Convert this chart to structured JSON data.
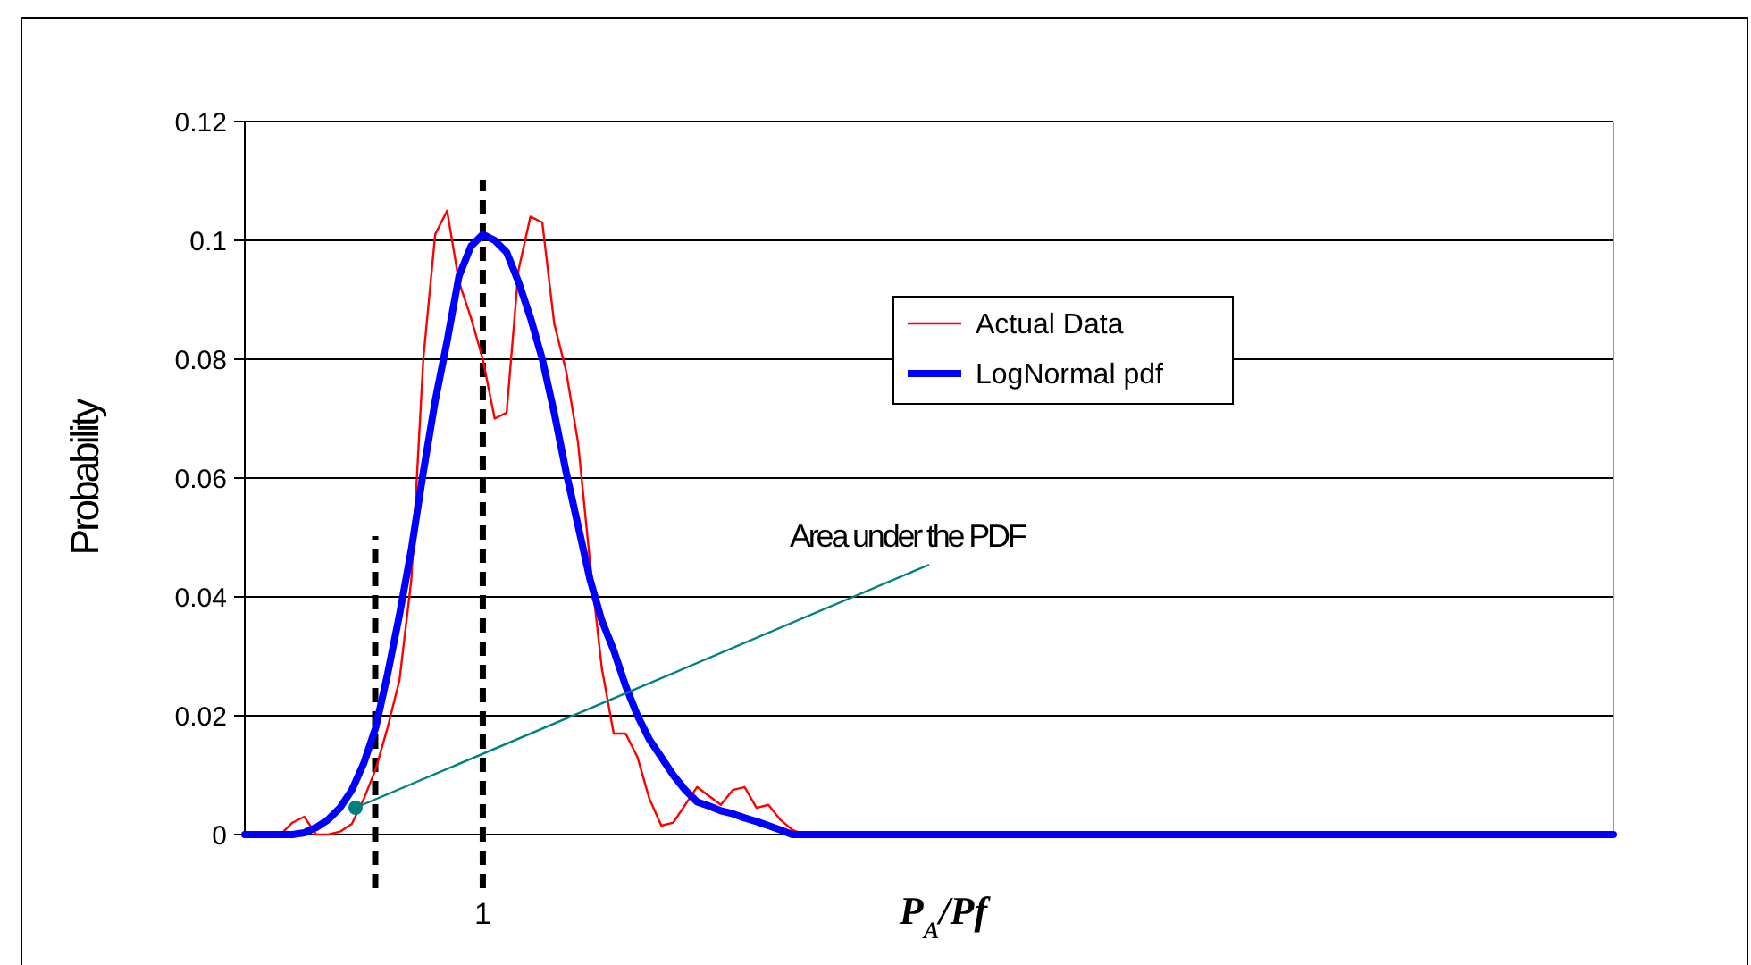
{
  "chart_data": {
    "type": "line",
    "ylabel": "Probability",
    "xlabel": "P$_{A}$/Pf",
    "categories": [
      null,
      null,
      null,
      null,
      null,
      null,
      null,
      null,
      null,
      null,
      null,
      null,
      null,
      null,
      null,
      null,
      null,
      null,
      null,
      null,
      "1",
      null,
      null,
      null,
      null,
      null,
      null,
      null,
      null,
      null,
      null,
      null,
      null,
      null,
      null,
      null,
      null,
      null,
      null,
      null,
      null,
      null,
      null,
      null,
      null,
      null,
      null,
      null,
      null,
      null,
      null,
      null,
      null,
      null,
      null,
      null,
      null,
      null,
      null,
      null,
      null,
      null,
      null,
      null,
      null,
      null,
      null,
      null,
      null,
      null,
      null,
      null,
      null,
      null,
      null,
      null,
      null,
      null,
      null,
      null,
      null,
      null,
      null,
      null,
      null,
      null,
      null,
      null,
      null,
      null,
      null,
      null,
      null,
      null,
      null,
      null,
      null,
      null,
      null,
      null,
      null,
      null,
      null,
      null,
      null,
      null,
      null,
      null,
      null,
      null,
      null,
      null,
      null,
      null,
      null,
      null
    ],
    "ylim": [
      0,
      0.12
    ],
    "yticks": [
      0,
      0.02,
      0.04,
      0.06,
      0.08,
      0.1,
      0.12
    ],
    "grid": "y",
    "legend": "top right",
    "line_style": "solid",
    "series": [
      {
        "name": "Actual Data",
        "color": "#ff0000",
        "values": [
          null,
          null,
          0,
          0,
          0.002,
          0.003,
          0,
          0,
          0.0005,
          0.0018,
          0.006,
          0.011,
          0.018,
          0.026,
          0.043,
          0.08,
          0.101,
          0.105,
          0.093,
          0.087,
          0.08,
          0.07,
          0.071,
          0.095,
          0.104,
          0.103,
          0.086,
          0.078,
          0.066,
          0.046,
          0.028,
          0.017,
          0.017,
          0.013,
          0.006,
          0.0015,
          0.002,
          0.005,
          0.008,
          0.0065,
          0.005,
          0.0075,
          0.008,
          0.0045,
          0.005,
          0.0025,
          0.0008,
          0,
          null,
          null,
          null,
          null,
          null,
          null,
          null,
          null,
          null,
          null,
          null,
          null,
          null,
          null,
          null,
          null,
          null,
          null,
          null,
          null,
          null,
          null,
          null,
          null,
          null,
          null,
          null,
          null,
          null,
          null,
          null,
          null,
          null,
          null,
          null,
          null,
          null,
          null,
          null,
          null,
          null,
          null,
          null,
          null,
          null,
          null,
          null,
          null,
          null,
          null,
          null,
          null,
          null,
          null,
          null,
          null,
          null,
          null,
          null,
          null,
          null,
          null,
          null,
          null,
          null,
          null,
          null,
          null
        ]
      },
      {
        "name": "LogNormal pdf",
        "color": "#0000ff",
        "values": [
          0,
          0,
          0,
          0,
          0,
          0.0003,
          0.0012,
          0.0025,
          0.0045,
          0.0075,
          0.012,
          0.018,
          0.027,
          0.037,
          0.048,
          0.061,
          0.073,
          0.083,
          0.094,
          0.099,
          0.101,
          0.1,
          0.098,
          0.093,
          0.087,
          0.08,
          0.071,
          0.061,
          0.052,
          0.043,
          0.036,
          0.031,
          0.025,
          0.02,
          0.016,
          0.013,
          0.01,
          0.0075,
          0.0055,
          0.0048,
          0.004,
          0.0035,
          0.0028,
          0.0022,
          0.0015,
          0.0008,
          0,
          0,
          0,
          0,
          0,
          0,
          0,
          0,
          0,
          0,
          0,
          0,
          0,
          0,
          0,
          0,
          0,
          0,
          0,
          0,
          0,
          0,
          0,
          0,
          0,
          0,
          0,
          0,
          0,
          0,
          0,
          0,
          0,
          0,
          0,
          0,
          0,
          0,
          0,
          0,
          0,
          0,
          0,
          0,
          0,
          0,
          0,
          0,
          0,
          0,
          0,
          0,
          0,
          0,
          0,
          0,
          0,
          0,
          0,
          0,
          0,
          0,
          0,
          0,
          0,
          0,
          0,
          0,
          0,
          0
        ]
      }
    ],
    "ref_lines": [
      {
        "axis": "x",
        "value": "1",
        "color": "#000000",
        "line_style": "dashed"
      }
    ],
    "annotations": [
      "Area under the PDF"
    ]
  }
}
